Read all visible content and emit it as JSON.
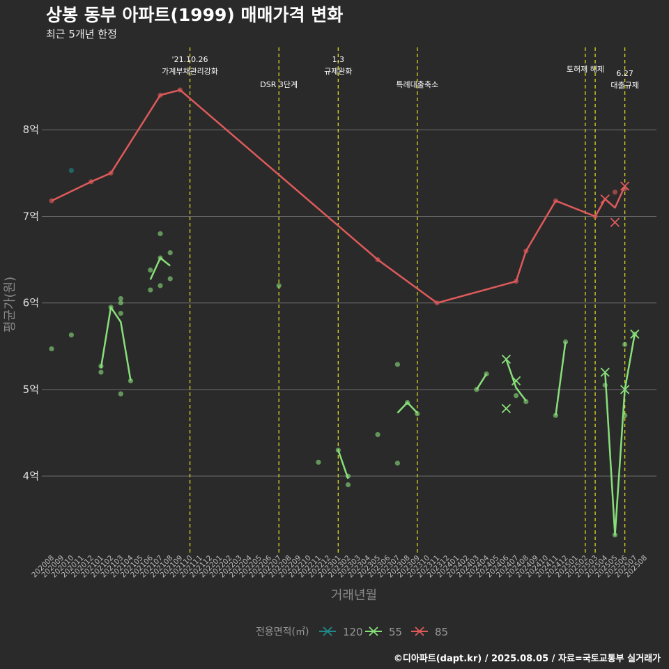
{
  "title": "상봉 동부 아파트(1999) 매매가격 변화",
  "subtitle": "최근 5개년 한정",
  "footer": "©디아파트(dapt.kr) / 2025.08.05 / 자료=국토교통부 실거래가",
  "chart_data": {
    "type": "line",
    "xlabel": "거래년월",
    "ylabel": "평균가(원)",
    "ylim": [
      3.1,
      9.0
    ],
    "yticks": [
      {
        "v": 4,
        "label": "4억"
      },
      {
        "v": 5,
        "label": "5억"
      },
      {
        "v": 6,
        "label": "6억"
      },
      {
        "v": 7,
        "label": "7억"
      },
      {
        "v": 8,
        "label": "8억"
      }
    ],
    "grid": true,
    "x_categories": [
      "202008",
      "202009",
      "202010",
      "202011",
      "202012",
      "202101",
      "202102",
      "202103",
      "202104",
      "202105",
      "202106",
      "202107",
      "202108",
      "202109",
      "202110",
      "202111",
      "202112",
      "202201",
      "202202",
      "202203",
      "202204",
      "202205",
      "202206",
      "202207",
      "202208",
      "202209",
      "202210",
      "202211",
      "202212",
      "202301",
      "202302",
      "202303",
      "202304",
      "202305",
      "202306",
      "202307",
      "202308",
      "202309",
      "202310",
      "202311",
      "202312",
      "202401",
      "202402",
      "202403",
      "202404",
      "202405",
      "202406",
      "202407",
      "202408",
      "202409",
      "202410",
      "202411",
      "202412",
      "202501",
      "202502",
      "202503",
      "202504",
      "202505",
      "202506",
      "202507",
      "202508"
    ],
    "legend": {
      "title": "전용면적(㎡)",
      "position": "bottom",
      "items": [
        {
          "name": "120",
          "color": "#1f8a8a"
        },
        {
          "name": "55",
          "color": "#88e07a"
        },
        {
          "name": "85",
          "color": "#e05a5a"
        }
      ]
    },
    "events": [
      {
        "x": "202110",
        "text": "'21.10.26\n가계부채관리강화",
        "level": 0
      },
      {
        "x": "202207",
        "text": "DSR 3단계",
        "level": 1
      },
      {
        "x": "202301",
        "text": "1.3\n규제완화",
        "level": 0
      },
      {
        "x": "202309",
        "text": "특례대출축소",
        "level": 1
      },
      {
        "x": "202502",
        "text": "토허제 해제",
        "level": 2
      },
      {
        "x": "202503",
        "text": "",
        "level": 2
      },
      {
        "x": "202506",
        "text": "6.27\n대출규제",
        "level": 3
      }
    ],
    "series": [
      {
        "name": "85",
        "color": "#e05a5a",
        "line": [
          [
            "202008",
            7.18
          ],
          [
            "202012",
            7.4
          ],
          [
            "202102",
            7.5
          ],
          [
            "202107",
            8.4
          ],
          [
            "202109",
            8.46
          ],
          [
            "202305",
            6.5
          ],
          [
            "202311",
            6.0
          ],
          [
            "202407",
            6.25
          ],
          [
            "202408",
            6.6
          ],
          [
            "202411",
            7.18
          ],
          [
            "202503",
            7.0
          ],
          [
            "202504",
            7.2
          ],
          [
            "202505",
            7.1
          ],
          [
            "202506",
            7.35
          ]
        ],
        "points": [
          [
            "202008",
            7.18
          ],
          [
            "202012",
            7.4
          ],
          [
            "202102",
            7.5
          ],
          [
            "202107",
            8.4
          ],
          [
            "202109",
            8.46
          ],
          [
            "202305",
            6.5
          ],
          [
            "202311",
            6.0
          ],
          [
            "202407",
            6.25
          ],
          [
            "202408",
            6.6
          ],
          [
            "202411",
            7.18
          ],
          [
            "202503",
            7.0
          ],
          [
            "202505",
            7.28
          ],
          [
            "202506",
            7.32
          ]
        ],
        "crosses": [
          [
            "202504",
            7.2
          ],
          [
            "202505",
            6.93
          ],
          [
            "202506",
            7.35
          ]
        ]
      },
      {
        "name": "55",
        "color": "#88e07a",
        "line_segments": [
          [
            [
              "202101",
              5.25
            ],
            [
              "202102",
              5.95
            ],
            [
              "202103",
              5.78
            ],
            [
              "202104",
              5.1
            ]
          ],
          [
            [
              "202106",
              6.27
            ],
            [
              "202107",
              6.52
            ],
            [
              "202108",
              6.43
            ]
          ],
          [
            [
              "202301",
              4.3
            ],
            [
              "202302",
              3.97
            ]
          ],
          [
            [
              "202307",
              4.73
            ],
            [
              "202308",
              4.85
            ],
            [
              "202309",
              4.73
            ]
          ],
          [
            [
              "202403",
              5.0
            ],
            [
              "202404",
              5.18
            ]
          ],
          [
            [
              "202406",
              5.35
            ],
            [
              "202407",
              5.02
            ],
            [
              "202408",
              4.87
            ]
          ],
          [
            [
              "202411",
              4.7
            ],
            [
              "202412",
              5.55
            ]
          ],
          [
            [
              "202504",
              5.2
            ],
            [
              "202505",
              3.32
            ],
            [
              "202506",
              5.0
            ],
            [
              "202507",
              5.64
            ]
          ]
        ],
        "points": [
          [
            "202008",
            5.47
          ],
          [
            "202010",
            5.63
          ],
          [
            "202101",
            5.2
          ],
          [
            "202101",
            5.27
          ],
          [
            "202102",
            5.95
          ],
          [
            "202103",
            5.88
          ],
          [
            "202103",
            6.0
          ],
          [
            "202103",
            6.05
          ],
          [
            "202103",
            4.95
          ],
          [
            "202104",
            5.1
          ],
          [
            "202106",
            6.15
          ],
          [
            "202106",
            6.38
          ],
          [
            "202107",
            6.2
          ],
          [
            "202107",
            6.52
          ],
          [
            "202107",
            6.8
          ],
          [
            "202108",
            6.58
          ],
          [
            "202108",
            6.28
          ],
          [
            "202207",
            6.2
          ],
          [
            "202211",
            4.16
          ],
          [
            "202301",
            4.3
          ],
          [
            "202302",
            3.9
          ],
          [
            "202302",
            4.0
          ],
          [
            "202305",
            4.48
          ],
          [
            "202307",
            5.29
          ],
          [
            "202307",
            4.15
          ],
          [
            "202308",
            4.85
          ],
          [
            "202309",
            4.72
          ],
          [
            "202403",
            5.0
          ],
          [
            "202404",
            5.18
          ],
          [
            "202407",
            4.93
          ],
          [
            "202408",
            4.86
          ],
          [
            "202411",
            4.7
          ],
          [
            "202412",
            5.55
          ],
          [
            "202504",
            5.05
          ],
          [
            "202505",
            3.32
          ],
          [
            "202506",
            5.52
          ],
          [
            "202506",
            4.7
          ],
          [
            "202507",
            5.64
          ]
        ],
        "crosses": [
          [
            "202406",
            5.35
          ],
          [
            "202406",
            4.78
          ],
          [
            "202407",
            5.1
          ],
          [
            "202504",
            5.2
          ],
          [
            "202506",
            5.0
          ],
          [
            "202507",
            5.64
          ]
        ]
      },
      {
        "name": "120",
        "color": "#1f8a8a",
        "points": [
          [
            "202010",
            7.53
          ]
        ],
        "crosses": []
      }
    ]
  }
}
